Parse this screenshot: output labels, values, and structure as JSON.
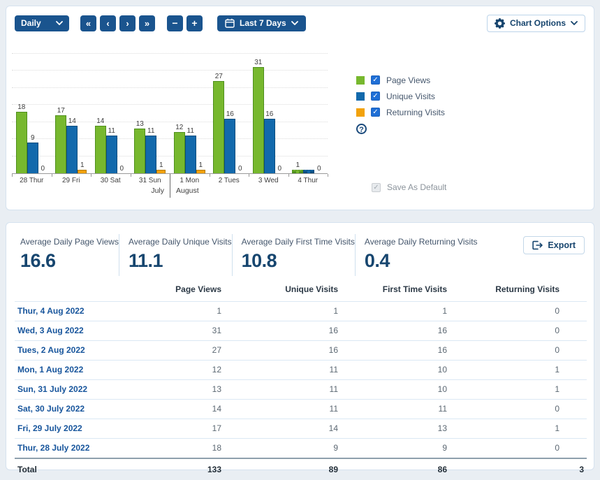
{
  "toolbar": {
    "frequency": {
      "value": "Daily"
    },
    "nav": {
      "first": "«",
      "prev": "‹",
      "next": "›",
      "last": "»"
    },
    "zoom_out": "−",
    "zoom_in": "+",
    "date_range": {
      "label": "Last 7 Days"
    },
    "chart_options": {
      "label": "Chart Options"
    }
  },
  "chart_data": {
    "type": "bar",
    "title": "",
    "categories": [
      "28 Thur",
      "29 Fri",
      "30 Sat",
      "31 Sun",
      "1 Mon",
      "2 Tues",
      "3 Wed",
      "4 Thur"
    ],
    "series": [
      {
        "name": "Page Views",
        "color": "#77b82e",
        "border": "#4f8f1d",
        "width": 16,
        "values": [
          18,
          17,
          14,
          13,
          12,
          27,
          31,
          1
        ]
      },
      {
        "name": "Unique Visits",
        "color": "#1269ac",
        "border": "#0b4d7e",
        "width": 16,
        "values": [
          9,
          14,
          11,
          11,
          11,
          16,
          16,
          1
        ]
      },
      {
        "name": "Returning Visits",
        "color": "#f2a20b",
        "border": "#b57b00",
        "width": 13,
        "values": [
          0,
          1,
          0,
          1,
          1,
          0,
          0,
          0
        ]
      }
    ],
    "bar_labels": [
      [
        "18",
        "9",
        "0"
      ],
      [
        "17",
        "14",
        "1"
      ],
      [
        "14",
        "11",
        "0"
      ],
      [
        "13",
        "11",
        "1"
      ],
      [
        "12",
        "11",
        "1"
      ],
      [
        "27",
        "16",
        "0"
      ],
      [
        "31",
        "16",
        "0"
      ],
      [
        "1",
        "",
        "0"
      ]
    ],
    "dashed_groups": [
      7
    ],
    "ylim": [
      0,
      36
    ],
    "gridline_step": 5,
    "grid": true,
    "legend_position": "right",
    "month_divider_after": 4,
    "months": {
      "left": "July",
      "right": "August"
    }
  },
  "legend": {
    "items": [
      {
        "label": "Page Views",
        "color": "#77b82e",
        "checked": true
      },
      {
        "label": "Unique Visits",
        "color": "#1269ac",
        "checked": true
      },
      {
        "label": "Returning Visits",
        "color": "#f2a20b",
        "checked": true
      }
    ],
    "help_icon": "?",
    "save_as_default": {
      "label": "Save As Default",
      "checked": true,
      "disabled": true
    }
  },
  "stats": [
    {
      "label": "Average Daily Page Views",
      "value": "16.6"
    },
    {
      "label": "Average Daily Unique Visits",
      "value": "11.1"
    },
    {
      "label": "Average Daily First Time Visits",
      "value": "10.8"
    },
    {
      "label": "Average Daily Returning Visits",
      "value": "0.4"
    }
  ],
  "export": {
    "label": "Export"
  },
  "table": {
    "columns": [
      "Page Views",
      "Unique Visits",
      "First Time Visits",
      "Returning Visits"
    ],
    "rows": [
      {
        "date": "Thur, 4 Aug 2022",
        "values": [
          1,
          1,
          1,
          0
        ]
      },
      {
        "date": "Wed, 3 Aug 2022",
        "values": [
          31,
          16,
          16,
          0
        ]
      },
      {
        "date": "Tues, 2 Aug 2022",
        "values": [
          27,
          16,
          16,
          0
        ]
      },
      {
        "date": "Mon, 1 Aug 2022",
        "values": [
          12,
          11,
          10,
          1
        ]
      },
      {
        "date": "Sun, 31 July 2022",
        "values": [
          13,
          11,
          10,
          1
        ]
      },
      {
        "date": "Sat, 30 July 2022",
        "values": [
          14,
          11,
          11,
          0
        ]
      },
      {
        "date": "Fri, 29 July 2022",
        "values": [
          17,
          14,
          13,
          1
        ]
      },
      {
        "date": "Thur, 28 July 2022",
        "values": [
          18,
          9,
          9,
          0
        ]
      }
    ],
    "total": {
      "label": "Total",
      "values": [
        133,
        89,
        86,
        3
      ]
    }
  },
  "colors": {
    "accent_navy": "#1a548e",
    "checkbox_blue": "#1f6fd6",
    "link_navy": "#17559c",
    "stat_navy": "#17466f",
    "page_views_green": "#77b82e",
    "unique_visits_blue": "#1269ac",
    "returning_visits_orange": "#f2a20b"
  }
}
